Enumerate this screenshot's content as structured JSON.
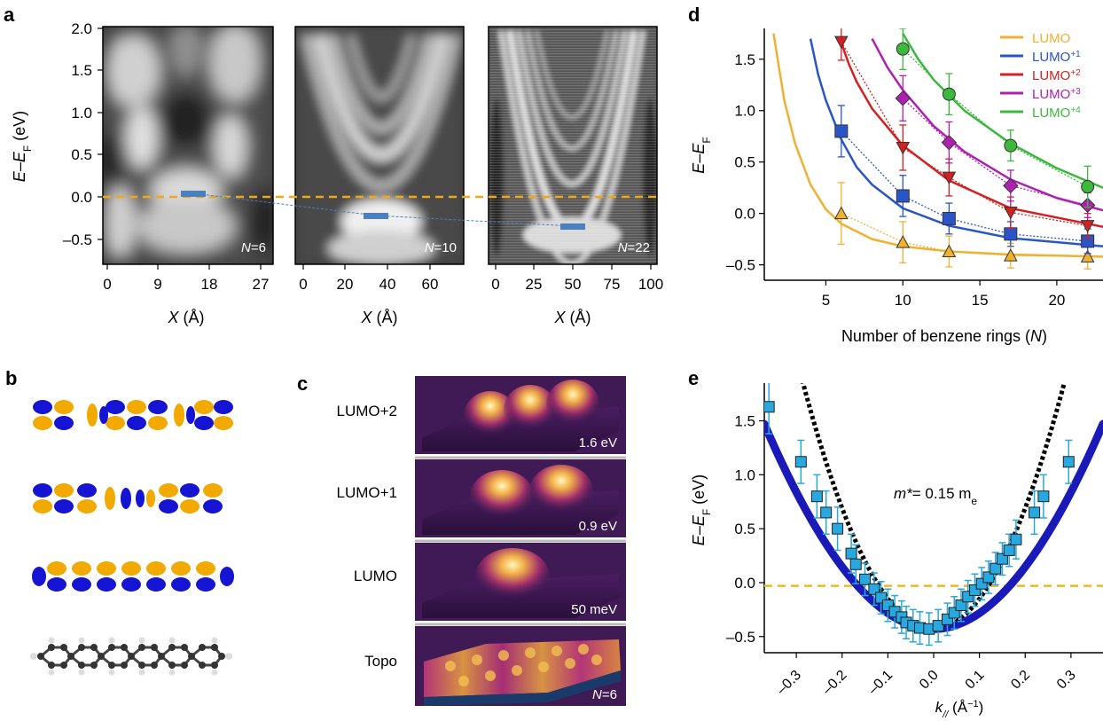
{
  "panel_labels": {
    "a": "a",
    "b": "b",
    "c": "c",
    "d": "d",
    "e": "e"
  },
  "panel_a": {
    "ylabel": "E–E",
    "ylabel_sub": "F",
    "ylabel_unit": " (eV)",
    "yticks": [
      "2.0",
      "1.5",
      "1.0",
      "0.5",
      "0.0",
      "–0.5"
    ],
    "maps": [
      {
        "n_label": "N",
        "n_value": "=6",
        "xticks": [
          "0",
          "9",
          "18",
          "27"
        ]
      },
      {
        "n_label": "N",
        "n_value": "=10",
        "xticks": [
          "0",
          "20",
          "40",
          "60"
        ]
      },
      {
        "n_label": "N",
        "n_value": "=22",
        "xticks": [
          "0",
          "25",
          "50",
          "75",
          "100"
        ]
      }
    ],
    "xlabel_var": "X",
    "xlabel_unit": " (Å)",
    "colors": {
      "fermi": "#f0a818",
      "marker": "#4a7fc0"
    }
  },
  "panel_c": {
    "rows": [
      {
        "label": "LUMO+2",
        "tag": "1.6 eV"
      },
      {
        "label": "LUMO+1",
        "tag": "0.9 eV"
      },
      {
        "label": "LUMO",
        "tag": "50 meV"
      },
      {
        "label": "Topo",
        "tag_var": "N",
        "tag_value": "=6"
      }
    ]
  },
  "panel_e": {
    "annotation_var": "m*",
    "annotation_val": "= 0.15 m",
    "annotation_sub": "e"
  },
  "chart_data": [
    {
      "id": "d",
      "type": "scatter",
      "xlabel": "Number of benzene rings (",
      "xlabel_var": "N",
      "xlabel_end": ")",
      "ylabel": "E–E",
      "ylabel_sub": "F",
      "xlim": [
        1,
        23
      ],
      "ylim": [
        -0.65,
        1.8
      ],
      "xticks": [
        5,
        10,
        15,
        20
      ],
      "yticks": [
        -0.5,
        0.0,
        0.5,
        1.0,
        1.5
      ],
      "ytick_labels": [
        "–0.5",
        "0.0",
        "0.5",
        "1.0",
        "1.5"
      ],
      "legend_position": "top-right",
      "series": [
        {
          "name": "LUMO",
          "sup": "",
          "color": "#f0b030",
          "marker": "triangle-up",
          "x": [
            6,
            10,
            13,
            17,
            22
          ],
          "y": [
            0.0,
            -0.28,
            -0.37,
            -0.41,
            -0.42
          ],
          "err": [
            0.3,
            0.2,
            0.15,
            0.12,
            0.12
          ],
          "fit_x": [
            1.6,
            2.3,
            3,
            4,
            5,
            6,
            8,
            10,
            13,
            17,
            23
          ],
          "fit_y": [
            1.75,
            1.1,
            0.68,
            0.28,
            0.04,
            -0.1,
            -0.25,
            -0.32,
            -0.37,
            -0.4,
            -0.42
          ]
        },
        {
          "name": "LUMO",
          "sup": "+1",
          "color": "#2a55c8",
          "marker": "square",
          "x": [
            6,
            10,
            13,
            17,
            22
          ],
          "y": [
            0.8,
            0.17,
            -0.05,
            -0.2,
            -0.27
          ],
          "err": [
            0.25,
            0.2,
            0.15,
            0.12,
            0.12
          ],
          "fit_x": [
            4,
            4.5,
            5,
            6,
            7,
            8,
            10,
            13,
            17,
            23
          ],
          "fit_y": [
            1.7,
            1.35,
            1.1,
            0.72,
            0.45,
            0.28,
            0.05,
            -0.12,
            -0.24,
            -0.32
          ]
        },
        {
          "name": "LUMO",
          "sup": "+2",
          "color": "#d42020",
          "marker": "triangle-down",
          "x": [
            6,
            10,
            13,
            17,
            22
          ],
          "y": [
            1.67,
            0.64,
            0.35,
            0.01,
            -0.12
          ],
          "err": [
            0.18,
            0.22,
            0.18,
            0.15,
            0.12
          ],
          "fit_x": [
            5.9,
            6.5,
            7,
            8,
            10,
            13,
            17,
            23
          ],
          "fit_y": [
            1.7,
            1.45,
            1.28,
            1.02,
            0.66,
            0.32,
            0.05,
            -0.13
          ]
        },
        {
          "name": "LUMO",
          "sup": "+3",
          "color": "#b020b0",
          "marker": "diamond",
          "x": [
            10,
            13,
            17,
            22
          ],
          "y": [
            1.12,
            0.69,
            0.27,
            0.08
          ],
          "err": [
            0.22,
            0.2,
            0.15,
            0.12
          ],
          "fit_x": [
            8,
            9,
            10,
            12,
            14,
            17,
            20,
            23
          ],
          "fit_y": [
            1.7,
            1.42,
            1.2,
            0.85,
            0.6,
            0.33,
            0.15,
            0.03
          ]
        },
        {
          "name": "LUMO",
          "sup": "+4",
          "color": "#3cb83c",
          "marker": "circle",
          "x": [
            10,
            13,
            17,
            22
          ],
          "y": [
            1.6,
            1.16,
            0.66,
            0.26
          ],
          "err": [
            0.2,
            0.2,
            0.15,
            0.2
          ],
          "fit_x": [
            10,
            11,
            12,
            14,
            17,
            20,
            23
          ],
          "fit_y": [
            1.75,
            1.5,
            1.3,
            1.0,
            0.68,
            0.44,
            0.25
          ]
        }
      ]
    },
    {
      "id": "e",
      "type": "scatter",
      "xlabel_var": "k",
      "xlabel_sub": "//",
      "xlabel_unit": " (Å",
      "xlabel_sup": "−1",
      "xlabel_end": ")",
      "ylabel": "E–E",
      "ylabel_sub": "F",
      "ylabel_unit": " (eV)",
      "xlim": [
        -0.37,
        0.37
      ],
      "ylim": [
        -0.65,
        1.85
      ],
      "xticks": [
        -0.3,
        -0.2,
        -0.1,
        0.0,
        0.1,
        0.2,
        0.3
      ],
      "xtick_labels": [
        "–0.3",
        "–0.2",
        "–0.1",
        "0.0",
        "0.1",
        "0.2",
        "0.3"
      ],
      "yticks": [
        -0.5,
        0.0,
        0.5,
        1.0,
        1.5
      ],
      "ytick_labels": [
        "–0.5",
        "0.0",
        "0.5",
        "1.0",
        "1.5"
      ],
      "fermi_level": -0.03,
      "fit_mass": 0.15,
      "data_points": {
        "x": [
          -0.36,
          -0.29,
          -0.255,
          -0.235,
          -0.21,
          -0.18,
          -0.17,
          -0.15,
          -0.13,
          -0.115,
          -0.1,
          -0.085,
          -0.07,
          -0.06,
          -0.045,
          -0.03,
          -0.01,
          0.01,
          0.03,
          0.045,
          0.06,
          0.075,
          0.09,
          0.105,
          0.12,
          0.135,
          0.15,
          0.165,
          0.18,
          0.22,
          0.24,
          0.295
        ],
        "y": [
          1.63,
          1.12,
          0.8,
          0.65,
          0.5,
          0.27,
          0.17,
          0.03,
          -0.06,
          -0.14,
          -0.21,
          -0.27,
          -0.32,
          -0.37,
          -0.4,
          -0.42,
          -0.43,
          -0.4,
          -0.34,
          -0.28,
          -0.21,
          -0.13,
          -0.07,
          -0.01,
          0.05,
          0.13,
          0.22,
          0.3,
          0.4,
          0.65,
          0.8,
          1.12
        ],
        "err": [
          0.25,
          0.2,
          0.2,
          0.2,
          0.2,
          0.18,
          0.18,
          0.15,
          0.15,
          0.15,
          0.15,
          0.15,
          0.15,
          0.15,
          0.15,
          0.15,
          0.15,
          0.15,
          0.15,
          0.15,
          0.15,
          0.15,
          0.15,
          0.15,
          0.15,
          0.15,
          0.15,
          0.15,
          0.18,
          0.2,
          0.2,
          0.2
        ]
      },
      "colors": {
        "points": "#27a8e0",
        "fit": "#1a1ab8",
        "parabola": "#000000",
        "fermi": "#f0b820"
      }
    }
  ]
}
